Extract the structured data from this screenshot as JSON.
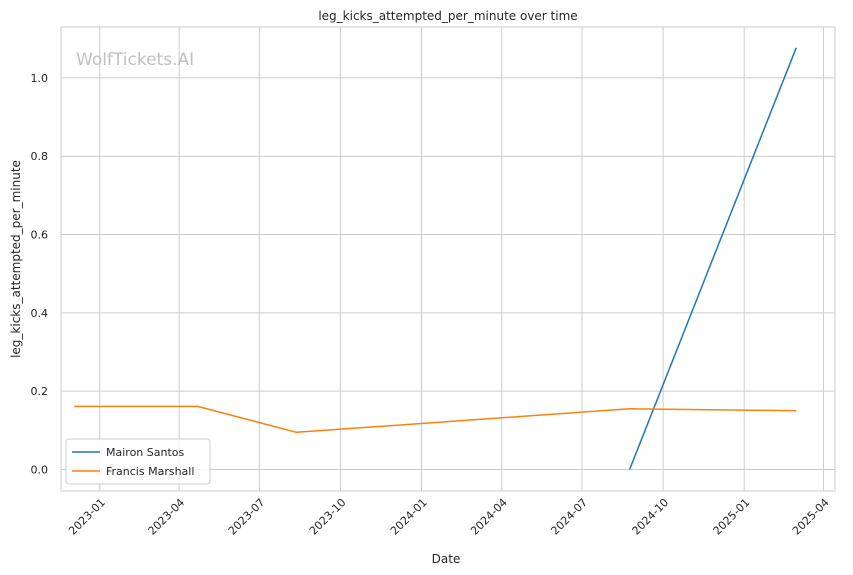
{
  "chart_data": {
    "type": "line",
    "title": "leg_kicks_attempted_per_minute over time",
    "xlabel": "Date",
    "ylabel": "leg_kicks_attempted_per_minute",
    "watermark": "WolfTickets.AI",
    "x_tick_labels": [
      "2023-01",
      "2023-04",
      "2023-07",
      "2023-10",
      "2024-01",
      "2024-04",
      "2024-07",
      "2024-10",
      "2025-01",
      "2025-04"
    ],
    "y_ticks": [
      0.0,
      0.2,
      0.4,
      0.6,
      0.8,
      1.0
    ],
    "y_tick_labels": [
      "0.0",
      "0.2",
      "0.4",
      "0.6",
      "0.8",
      "1.0"
    ],
    "xlim": [
      "2022-11-18",
      "2025-04-14"
    ],
    "ylim": [
      -0.055,
      1.13
    ],
    "grid": true,
    "legend_position": "lower-left",
    "series": [
      {
        "name": "Mairon Santos",
        "color": "#1f77b4",
        "points": [
          {
            "x": "2024-08-24",
            "y": 0.0
          },
          {
            "x": "2025-03-01",
            "y": 1.077
          }
        ]
      },
      {
        "name": "Francis Marshall",
        "color": "#ff7f0e",
        "points": [
          {
            "x": "2022-12-03",
            "y": 0.161
          },
          {
            "x": "2023-04-22",
            "y": 0.161
          },
          {
            "x": "2023-08-12",
            "y": 0.095
          },
          {
            "x": "2024-08-24",
            "y": 0.155
          },
          {
            "x": "2025-03-01",
            "y": 0.15
          }
        ]
      }
    ]
  }
}
